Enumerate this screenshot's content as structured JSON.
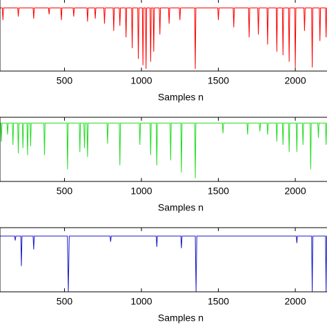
{
  "chart_data": [
    {
      "type": "line",
      "x_label": "Samples n",
      "xlim": [
        81,
        2206
      ],
      "ylim": [
        0,
        1
      ],
      "xticks": [
        500,
        1000,
        1500,
        2000
      ],
      "series": [
        {
          "color": "#ff0000",
          "x": [
            81,
            96,
            100,
            104,
            196,
            200,
            204,
            296,
            300,
            304,
            396,
            400,
            404,
            476,
            480,
            484,
            556,
            560,
            564,
            646,
            650,
            654,
            696,
            700,
            704,
            756,
            760,
            764,
            816,
            820,
            824,
            856,
            860,
            864,
            896,
            900,
            904,
            936,
            940,
            944,
            976,
            980,
            984,
            1006,
            1010,
            1014,
            1026,
            1030,
            1034,
            1056,
            1060,
            1064,
            1076,
            1080,
            1084,
            1116,
            1120,
            1124,
            1176,
            1180,
            1184,
            1246,
            1250,
            1254,
            1346,
            1350,
            1354,
            1496,
            1500,
            1504,
            1596,
            1600,
            1604,
            1696,
            1700,
            1704,
            1756,
            1760,
            1764,
            1816,
            1820,
            1824,
            1876,
            1880,
            1884,
            1916,
            1920,
            1924,
            1956,
            1960,
            1964,
            1996,
            2000,
            2004,
            2056,
            2060,
            2064,
            2106,
            2110,
            2114,
            2156,
            2160,
            2164,
            2196,
            2200,
            2204,
            2206
          ],
          "values": [
            0.88,
            0.88,
            0.71,
            0.88,
            0.88,
            0.76,
            0.88,
            0.88,
            0.73,
            0.88,
            0.88,
            0.79,
            0.88,
            0.88,
            0.71,
            0.88,
            0.88,
            0.76,
            0.88,
            0.88,
            0.69,
            0.88,
            0.88,
            0.73,
            0.88,
            0.88,
            0.66,
            0.88,
            0.88,
            0.56,
            0.88,
            0.88,
            0.63,
            0.88,
            0.88,
            0.47,
            0.88,
            0.88,
            0.32,
            0.88,
            0.88,
            0.17,
            0.88,
            0.88,
            0.08,
            0.88,
            0.88,
            0.03,
            0.88,
            0.88,
            0.13,
            0.88,
            0.88,
            0.27,
            0.88,
            0.88,
            0.51,
            0.88,
            0.88,
            0.66,
            0.88,
            0.88,
            0.71,
            0.88,
            0.88,
            0.03,
            0.88,
            0.88,
            0.71,
            0.88,
            0.88,
            0.61,
            0.88,
            0.88,
            0.47,
            0.88,
            0.88,
            0.51,
            0.88,
            0.88,
            0.37,
            0.88,
            0.88,
            0.27,
            0.88,
            0.88,
            0.22,
            0.88,
            0.88,
            0.13,
            0.88,
            0.88,
            0.05,
            0.88,
            0.88,
            0.56,
            0.88,
            0.88,
            0.05,
            0.88,
            0.88,
            0.42,
            0.88,
            0.88,
            0.47,
            0.88,
            0.88
          ]
        }
      ]
    },
    {
      "type": "line",
      "x_label": "Samples n",
      "xlim": [
        81,
        2206
      ],
      "ylim": [
        0,
        1
      ],
      "xticks": [
        500,
        1000,
        1500,
        2000
      ],
      "series": [
        {
          "color": "#22dd22",
          "x": [
            81,
            86,
            90,
            94,
            126,
            130,
            134,
            161,
            165,
            169,
            196,
            200,
            204,
            226,
            230,
            234,
            256,
            260,
            264,
            276,
            280,
            284,
            366,
            370,
            374,
            516,
            520,
            524,
            596,
            600,
            604,
            626,
            630,
            634,
            646,
            650,
            654,
            776,
            780,
            784,
            856,
            860,
            864,
            986,
            990,
            994,
            1056,
            1060,
            1064,
            1096,
            1100,
            1104,
            1186,
            1190,
            1194,
            1256,
            1260,
            1264,
            1346,
            1350,
            1354,
            1526,
            1530,
            1534,
            1686,
            1690,
            1694,
            1766,
            1770,
            1774,
            1816,
            1820,
            1824,
            1876,
            1880,
            1884,
            1916,
            1920,
            1924,
            1956,
            1960,
            1964,
            2006,
            2010,
            2014,
            2046,
            2050,
            2054,
            2096,
            2100,
            2104,
            2146,
            2150,
            2154,
            2196,
            2200,
            2204,
            2206
          ],
          "values": [
            0.91,
            0.91,
            0.62,
            0.91,
            0.91,
            0.73,
            0.91,
            0.91,
            0.57,
            0.91,
            0.91,
            0.44,
            0.91,
            0.91,
            0.52,
            0.91,
            0.91,
            0.41,
            0.91,
            0.91,
            0.55,
            0.91,
            0.91,
            0.41,
            0.91,
            0.91,
            0.19,
            0.91,
            0.91,
            0.46,
            0.91,
            0.91,
            0.52,
            0.91,
            0.91,
            0.38,
            0.91,
            0.91,
            0.59,
            0.91,
            0.91,
            0.25,
            0.91,
            0.91,
            0.57,
            0.91,
            0.91,
            0.41,
            0.91,
            0.91,
            0.25,
            0.91,
            0.91,
            0.33,
            0.91,
            0.91,
            0.14,
            0.91,
            0.91,
            0.05,
            0.91,
            0.91,
            0.75,
            0.91,
            0.91,
            0.73,
            0.91,
            0.91,
            0.78,
            0.91,
            0.91,
            0.73,
            0.91,
            0.91,
            0.62,
            0.91,
            0.91,
            0.57,
            0.91,
            0.91,
            0.46,
            0.91,
            0.91,
            0.46,
            0.91,
            0.91,
            0.57,
            0.91,
            0.91,
            0.19,
            0.91,
            0.91,
            0.68,
            0.91,
            0.91,
            0.57,
            0.91,
            0.91
          ]
        }
      ]
    },
    {
      "type": "line",
      "x_label": "Samples n",
      "xlim": [
        81,
        2206
      ],
      "ylim": [
        0,
        1
      ],
      "xticks": [
        500,
        1000,
        1500,
        2000
      ],
      "series": [
        {
          "color": "#1a1acc",
          "x": [
            81,
            176,
            180,
            184,
            216,
            220,
            224,
            296,
            300,
            304,
            519,
            525,
            531,
            796,
            800,
            804,
            1096,
            1100,
            1104,
            1256,
            1260,
            1264,
            1350,
            1355,
            1360,
            2006,
            2010,
            2014,
            2106,
            2110,
            2114,
            2196,
            2200,
            2204,
            2206
          ],
          "values": [
            0.87,
            0.87,
            0.8,
            0.87,
            0.87,
            0.4,
            0.87,
            0.87,
            0.66,
            0.87,
            0.87,
            0,
            0.87,
            0.87,
            0.78,
            0.87,
            0.87,
            0.7,
            0.87,
            0.87,
            0.68,
            0.87,
            0.87,
            0,
            0.87,
            0.87,
            0.76,
            0.87,
            0.87,
            0,
            0.87,
            0.87,
            0,
            0.87,
            0.87
          ]
        }
      ]
    }
  ]
}
